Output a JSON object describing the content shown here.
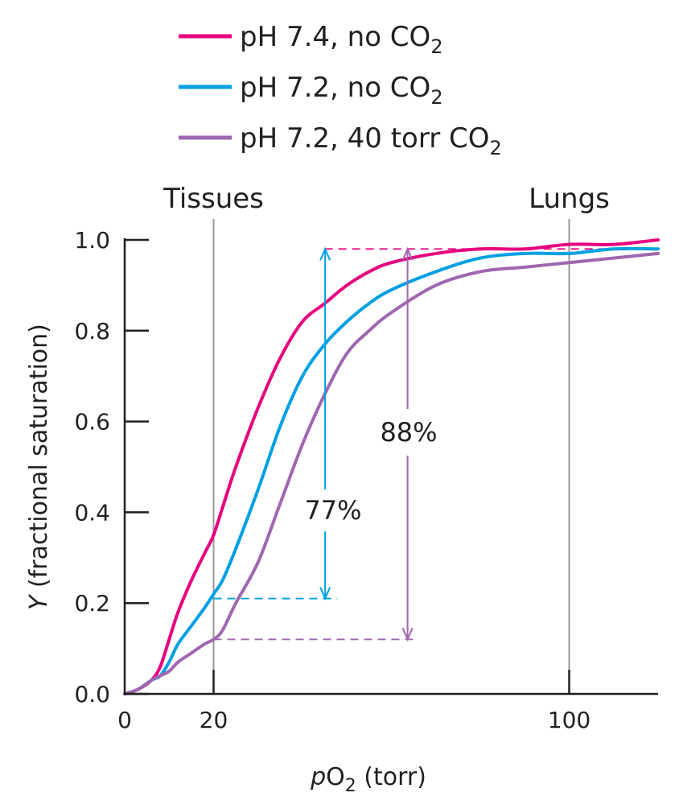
{
  "chart_data": {
    "type": "line",
    "title": "",
    "xlabel": {
      "italic": "p",
      "main": "O",
      "sub": "2",
      "tail": " (torr)"
    },
    "ylabel": {
      "italic": "Y",
      "rest": " (fractional saturation)"
    },
    "xlim": [
      0,
      120
    ],
    "ylim": [
      0,
      1.0
    ],
    "x_ticks": [
      {
        "value": 0,
        "label": "0"
      },
      {
        "value": 20,
        "label": "20"
      },
      {
        "value": 100,
        "label": "100"
      }
    ],
    "y_ticks": [
      {
        "value": 0.0,
        "label": "0.0"
      },
      {
        "value": 0.2,
        "label": "0.2"
      },
      {
        "value": 0.4,
        "label": "0.4"
      },
      {
        "value": 0.6,
        "label": "0.6"
      },
      {
        "value": 0.8,
        "label": "0.8"
      },
      {
        "value": 1.0,
        "label": "1.0"
      }
    ],
    "grid": false,
    "legend_position": "top",
    "series": [
      {
        "name": "pH 7.4, no CO",
        "name_sub": "2",
        "color": "#e6007e",
        "points": [
          [
            0,
            0
          ],
          [
            3,
            0.01
          ],
          [
            6,
            0.03
          ],
          [
            8,
            0.06
          ],
          [
            10,
            0.12
          ],
          [
            12,
            0.18
          ],
          [
            15,
            0.25
          ],
          [
            18,
            0.31
          ],
          [
            20,
            0.35
          ],
          [
            22,
            0.41
          ],
          [
            25,
            0.5
          ],
          [
            30,
            0.63
          ],
          [
            35,
            0.74
          ],
          [
            40,
            0.82
          ],
          [
            45,
            0.86
          ],
          [
            50,
            0.9
          ],
          [
            55,
            0.93
          ],
          [
            60,
            0.95
          ],
          [
            70,
            0.97
          ],
          [
            80,
            0.98
          ],
          [
            90,
            0.98
          ],
          [
            100,
            0.99
          ],
          [
            110,
            0.99
          ],
          [
            120,
            1.0
          ]
        ]
      },
      {
        "name": "pH 7.2, no CO",
        "name_sub": "2",
        "color": "#00a0e3",
        "points": [
          [
            0,
            0
          ],
          [
            3,
            0.01
          ],
          [
            6,
            0.03
          ],
          [
            8,
            0.04
          ],
          [
            10,
            0.07
          ],
          [
            12,
            0.11
          ],
          [
            15,
            0.15
          ],
          [
            18,
            0.19
          ],
          [
            20,
            0.22
          ],
          [
            22,
            0.25
          ],
          [
            25,
            0.32
          ],
          [
            30,
            0.45
          ],
          [
            35,
            0.59
          ],
          [
            40,
            0.7
          ],
          [
            45,
            0.77
          ],
          [
            50,
            0.82
          ],
          [
            55,
            0.86
          ],
          [
            60,
            0.89
          ],
          [
            70,
            0.93
          ],
          [
            80,
            0.96
          ],
          [
            90,
            0.97
          ],
          [
            100,
            0.97
          ],
          [
            110,
            0.98
          ],
          [
            120,
            0.98
          ]
        ]
      },
      {
        "name": "pH 7.2, 40 torr CO",
        "name_sub": "2",
        "color": "#a066b0",
        "points": [
          [
            0,
            0
          ],
          [
            3,
            0.01
          ],
          [
            6,
            0.03
          ],
          [
            8,
            0.04
          ],
          [
            10,
            0.05
          ],
          [
            12,
            0.07
          ],
          [
            15,
            0.09
          ],
          [
            18,
            0.11
          ],
          [
            20,
            0.12
          ],
          [
            22,
            0.14
          ],
          [
            25,
            0.2
          ],
          [
            30,
            0.29
          ],
          [
            35,
            0.42
          ],
          [
            40,
            0.55
          ],
          [
            45,
            0.66
          ],
          [
            50,
            0.75
          ],
          [
            55,
            0.8
          ],
          [
            60,
            0.84
          ],
          [
            70,
            0.9
          ],
          [
            80,
            0.93
          ],
          [
            90,
            0.94
          ],
          [
            100,
            0.95
          ],
          [
            110,
            0.96
          ],
          [
            120,
            0.97
          ]
        ]
      }
    ],
    "vertical_markers": [
      {
        "x": 20,
        "label": "Tissues"
      },
      {
        "x": 100,
        "label": "Lungs"
      }
    ],
    "annotations": [
      {
        "label": "77%",
        "color": "#00a0e3",
        "x": 46,
        "y_low": 0.21,
        "y_high": 0.98
      },
      {
        "label": "88%",
        "color": "#a066b0",
        "x": 64,
        "y_low": 0.12,
        "y_high": 0.98
      }
    ]
  }
}
